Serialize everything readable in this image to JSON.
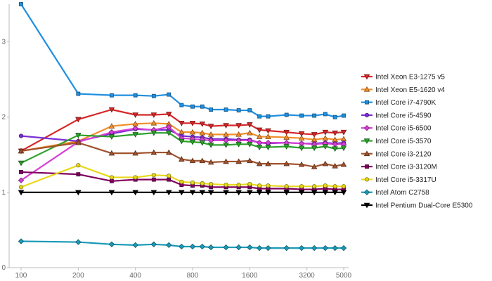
{
  "chart_data": {
    "type": "line",
    "x_scale": "log",
    "x_ticks": [
      100,
      200,
      400,
      800,
      1600,
      3200,
      5000
    ],
    "x_tick_labels": [
      "100",
      "200",
      "400",
      "800",
      "1600",
      "3200",
      "5000"
    ],
    "x": [
      100,
      200,
      300,
      400,
      500,
      600,
      700,
      800,
      900,
      1000,
      1200,
      1400,
      1600,
      1800,
      2000,
      2500,
      3000,
      3500,
      4000,
      4500,
      5000
    ],
    "ylim": [
      0,
      3.5
    ],
    "y_ticks": [
      0,
      1,
      2,
      3
    ],
    "y_tick_labels": [
      "0",
      "1",
      "2",
      "3"
    ],
    "grid": false,
    "legend_position": "right",
    "series": [
      {
        "name": "Intel Xeon E3-1275 v5",
        "color": "#d62728",
        "marker": "triangle-down",
        "values": [
          1.55,
          1.97,
          2.1,
          2.03,
          2.03,
          2.04,
          1.92,
          1.92,
          1.91,
          1.88,
          1.89,
          1.89,
          1.9,
          1.83,
          1.82,
          1.8,
          1.78,
          1.77,
          1.8,
          1.79,
          1.8
        ]
      },
      {
        "name": "Intel Xeon E5-1620 v4",
        "color": "#f28e2b",
        "marker": "triangle-up",
        "values": [
          1.55,
          1.68,
          1.88,
          1.91,
          1.92,
          1.91,
          1.8,
          1.8,
          1.79,
          1.77,
          1.77,
          1.77,
          1.79,
          1.74,
          1.74,
          1.73,
          1.72,
          1.7,
          1.72,
          1.7,
          1.71
        ]
      },
      {
        "name": "Intel Core i7-4790K",
        "color": "#1f8fe0",
        "marker": "square",
        "values": [
          3.5,
          2.31,
          2.29,
          2.29,
          2.28,
          2.3,
          2.16,
          2.14,
          2.14,
          2.1,
          2.1,
          2.09,
          2.09,
          2.01,
          2.01,
          2.03,
          2.02,
          2.02,
          2.04,
          2.0,
          2.02
        ]
      },
      {
        "name": "Intel Core i5-4590",
        "color": "#7b2fd6",
        "marker": "circle",
        "values": [
          1.75,
          1.68,
          1.78,
          1.84,
          1.83,
          1.83,
          1.75,
          1.74,
          1.73,
          1.71,
          1.71,
          1.7,
          1.7,
          1.66,
          1.65,
          1.66,
          1.65,
          1.65,
          1.66,
          1.65,
          1.66
        ]
      },
      {
        "name": "Intel Core i5-6500",
        "color": "#d63fd6",
        "marker": "diamond",
        "values": [
          1.16,
          1.67,
          1.8,
          1.85,
          1.83,
          1.87,
          1.72,
          1.71,
          1.7,
          1.69,
          1.69,
          1.69,
          1.69,
          1.66,
          1.66,
          1.66,
          1.65,
          1.64,
          1.65,
          1.64,
          1.64
        ]
      },
      {
        "name": "Intel Core i5-3570",
        "color": "#2ca02c",
        "marker": "triangle-down",
        "values": [
          1.39,
          1.76,
          1.74,
          1.77,
          1.79,
          1.79,
          1.68,
          1.67,
          1.66,
          1.63,
          1.63,
          1.64,
          1.64,
          1.6,
          1.6,
          1.61,
          1.59,
          1.59,
          1.61,
          1.58,
          1.59
        ]
      },
      {
        "name": "Intel Core i3-2120",
        "color": "#a0522d",
        "marker": "triangle-up",
        "values": [
          1.55,
          1.66,
          1.52,
          1.52,
          1.53,
          1.53,
          1.44,
          1.42,
          1.42,
          1.4,
          1.41,
          1.41,
          1.42,
          1.38,
          1.38,
          1.38,
          1.37,
          1.34,
          1.38,
          1.35,
          1.37
        ]
      },
      {
        "name": "Intel Core i3-3120M",
        "color": "#800060",
        "marker": "square",
        "values": [
          1.27,
          1.24,
          1.15,
          1.17,
          1.17,
          1.17,
          1.1,
          1.09,
          1.09,
          1.07,
          1.07,
          1.07,
          1.07,
          1.05,
          1.05,
          1.05,
          1.04,
          1.04,
          1.05,
          1.04,
          1.04
        ]
      },
      {
        "name": "Intel Core i5-3317U",
        "color": "#e8d81a",
        "marker": "circle",
        "values": [
          1.07,
          1.36,
          1.2,
          1.2,
          1.23,
          1.22,
          1.14,
          1.13,
          1.12,
          1.11,
          1.1,
          1.1,
          1.11,
          1.09,
          1.09,
          1.08,
          1.08,
          1.08,
          1.09,
          1.08,
          1.08
        ]
      },
      {
        "name": "Intel Atom C2758",
        "color": "#1a9ab8",
        "marker": "diamond",
        "values": [
          0.35,
          0.34,
          0.31,
          0.3,
          0.31,
          0.3,
          0.28,
          0.28,
          0.28,
          0.27,
          0.27,
          0.27,
          0.27,
          0.26,
          0.26,
          0.26,
          0.26,
          0.26,
          0.26,
          0.26,
          0.26
        ]
      },
      {
        "name": "Intel Pentium Dual-Core E5300",
        "color": "#000000",
        "marker": "triangle-down",
        "values": [
          1.0,
          1.0,
          1.0,
          1.0,
          1.0,
          1.0,
          1.0,
          1.0,
          1.0,
          1.0,
          1.0,
          1.0,
          1.0,
          1.0,
          1.0,
          1.0,
          1.0,
          1.0,
          1.0,
          1.0,
          1.0
        ]
      }
    ]
  }
}
